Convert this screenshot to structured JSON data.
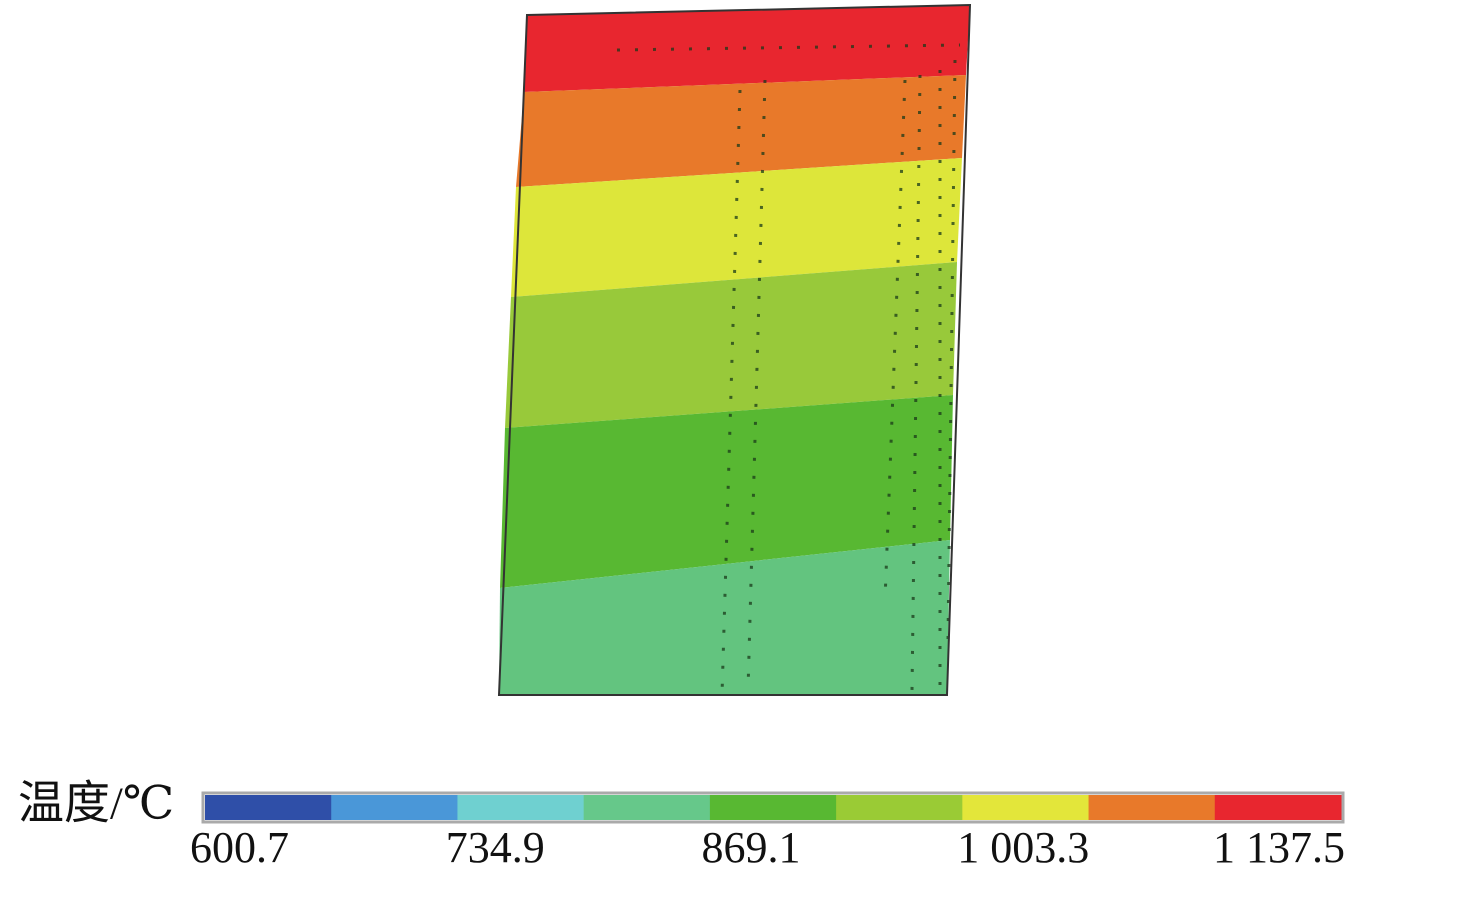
{
  "colorbar": {
    "title": "温度/℃",
    "ticks": [
      {
        "value": 600.7,
        "label": "600.7"
      },
      {
        "value": 734.9,
        "label": "734.9"
      },
      {
        "value": 869.1,
        "label": "869.1"
      },
      {
        "value": 1003.3,
        "label": "1 003.3"
      },
      {
        "value": 1137.5,
        "label": "1 137.5"
      }
    ],
    "colors": [
      "#2f4fa8",
      "#4a97d8",
      "#6fd0d0",
      "#66c88a",
      "#58b832",
      "#9acb35",
      "#e3e63a",
      "#e8792a",
      "#e8262f"
    ]
  }
}
